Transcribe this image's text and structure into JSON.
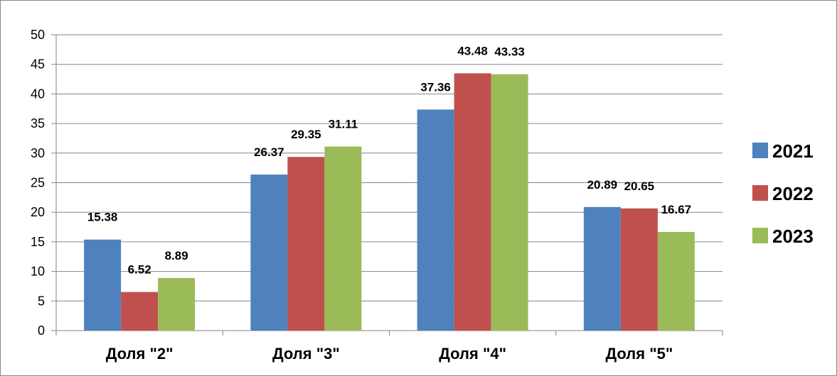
{
  "chart_data": {
    "type": "bar",
    "categories": [
      "Доля \"2\"",
      "Доля \"3\"",
      "Доля \"4\"",
      "Доля \"5\""
    ],
    "series": [
      {
        "name": "2021",
        "color": "#4F81BD",
        "values": [
          15.38,
          26.37,
          37.36,
          20.89
        ]
      },
      {
        "name": "2022",
        "color": "#C0504D",
        "values": [
          6.52,
          29.35,
          43.48,
          20.65
        ]
      },
      {
        "name": "2023",
        "color": "#9BBB59",
        "values": [
          8.89,
          31.11,
          43.33,
          16.67
        ]
      }
    ],
    "ylim": [
      0,
      50
    ],
    "yticks": [
      0,
      5,
      10,
      15,
      20,
      25,
      30,
      35,
      40,
      45,
      50
    ],
    "grid": true,
    "legend": "right",
    "data_labels": true
  }
}
